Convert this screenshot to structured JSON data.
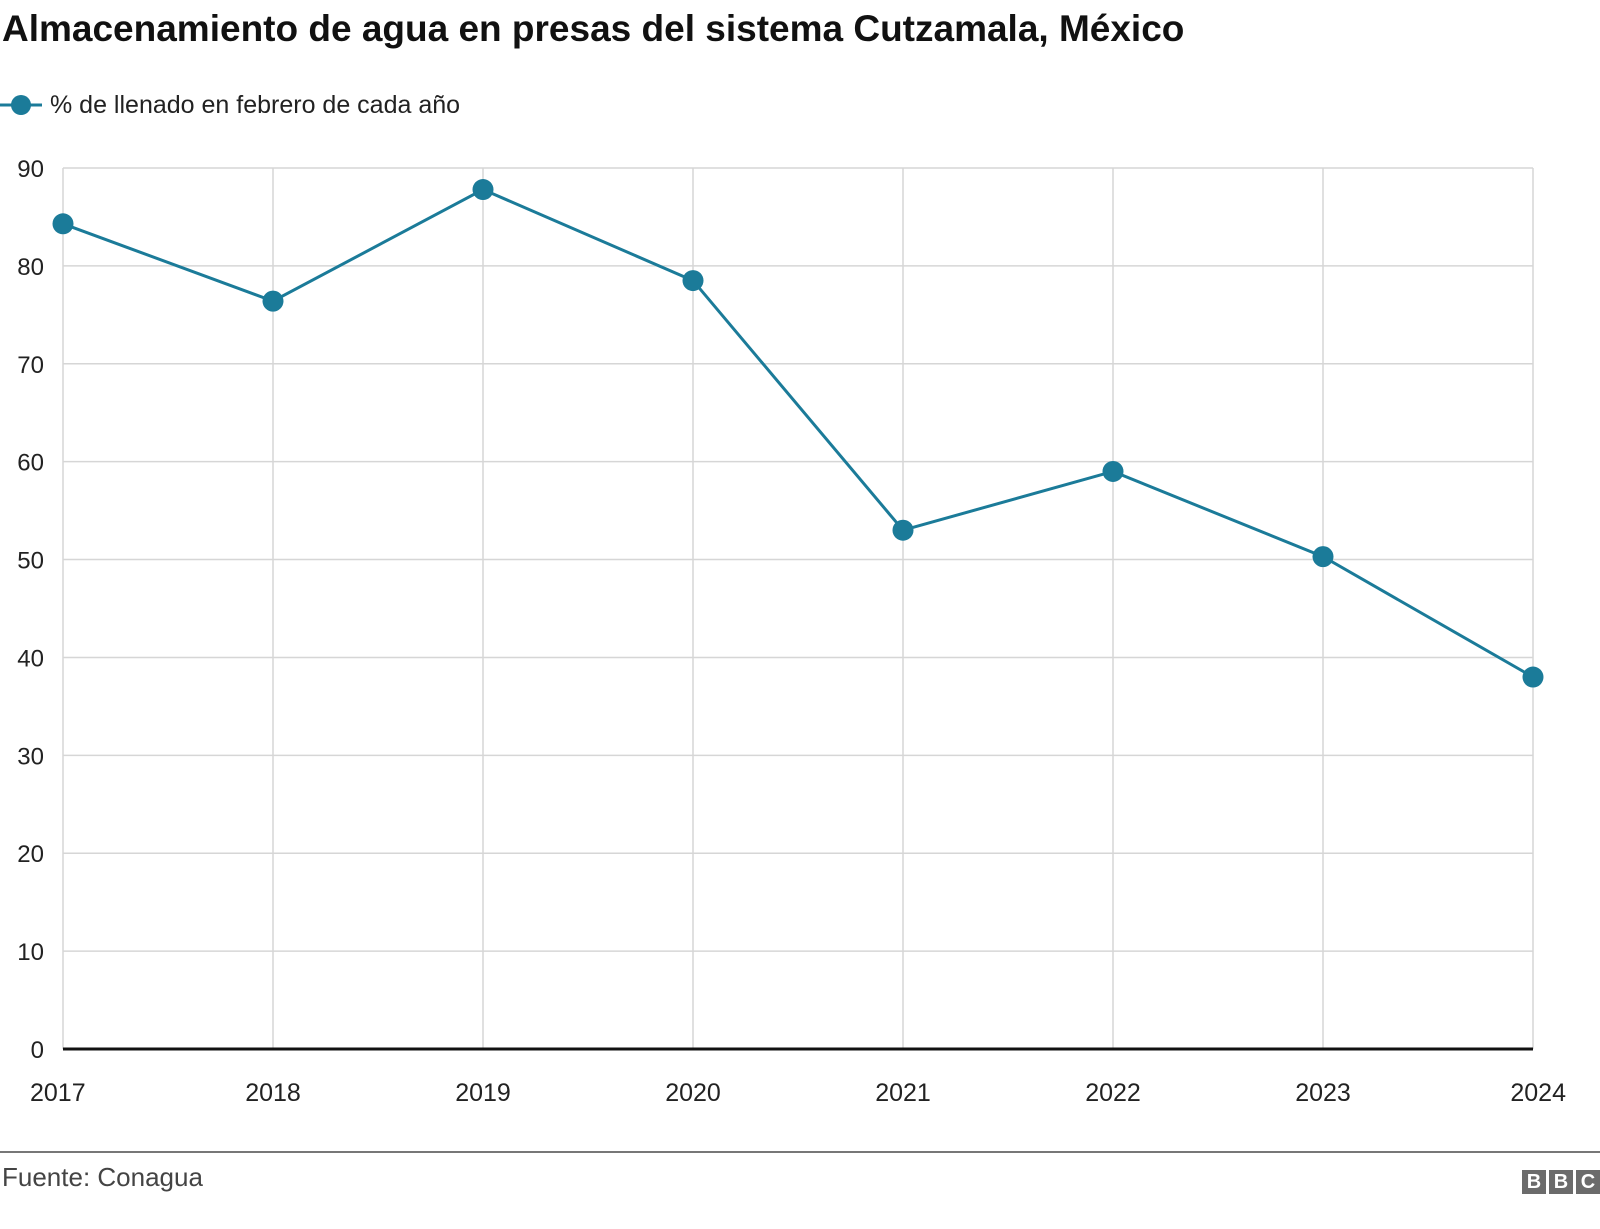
{
  "chart_data": {
    "type": "line",
    "title": "Almacenamiento de agua en presas del sistema Cutzamala, México",
    "x": [
      "2017",
      "2018",
      "2019",
      "2020",
      "2021",
      "2022",
      "2023",
      "2024"
    ],
    "series": [
      {
        "name": "% de llenado en febrero de cada año",
        "values": [
          84.3,
          76.4,
          87.8,
          78.5,
          53.0,
          59.0,
          50.3,
          38.0
        ],
        "color": "#1b7b99"
      }
    ],
    "yticks": [
      0,
      10,
      20,
      30,
      40,
      50,
      60,
      70,
      80,
      90
    ],
    "ylim": [
      0,
      90
    ],
    "xlabel": "",
    "ylabel": "",
    "grid": true,
    "legend_position": "top-left"
  },
  "footer": {
    "source": "Fuente: Conagua",
    "logo": [
      "B",
      "B",
      "C"
    ]
  }
}
